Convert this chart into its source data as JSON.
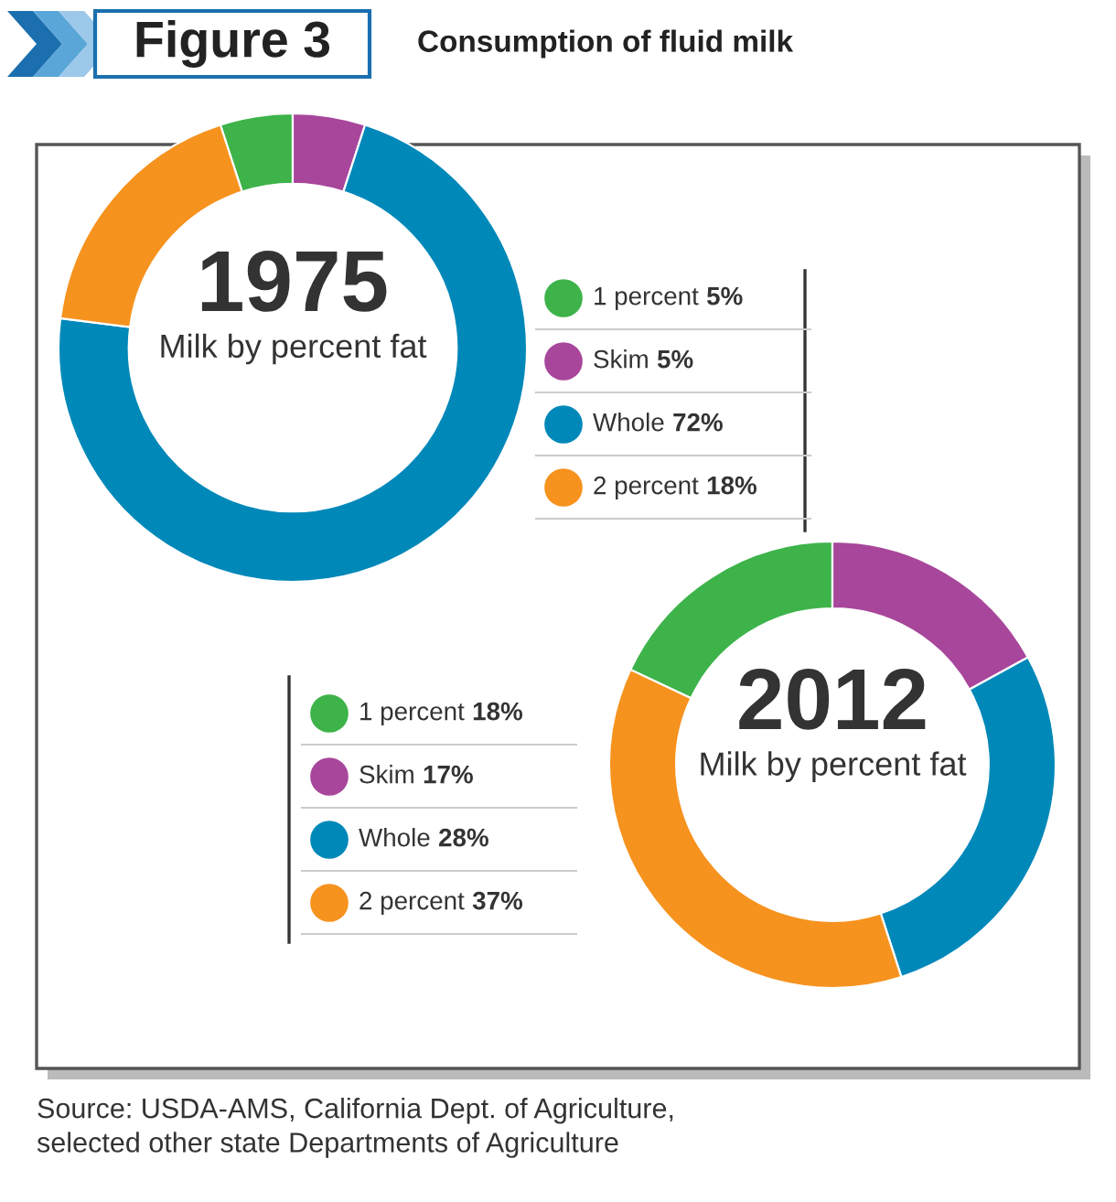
{
  "chart_data": [
    {
      "type": "donut",
      "title": "1975",
      "subtitle": "Milk by percent fat",
      "annotations": [
        "Figure 3",
        "Consumption of fluid milk"
      ],
      "categories": [
        "1 percent",
        "Skim",
        "Whole",
        "2 percent"
      ],
      "values": [
        5,
        5,
        72,
        18
      ],
      "value_labels": [
        "5%",
        "5%",
        "72%",
        "18%"
      ],
      "colors": [
        "#3db34a",
        "#a8469b",
        "#0088b9",
        "#f6921e"
      ],
      "legend": "right"
    },
    {
      "type": "donut",
      "title": "2012",
      "subtitle": "Milk by percent fat",
      "annotations": [
        "Source: USDA-AMS, California Dept. of Agriculture,\nselected other state Departments of Agriculture"
      ],
      "categories": [
        "1 percent",
        "Skim",
        "Whole",
        "2 percent"
      ],
      "values": [
        18,
        17,
        28,
        37
      ],
      "value_labels": [
        "18%",
        "17%",
        "28%",
        "37%"
      ],
      "colors": [
        "#3db34a",
        "#a8469b",
        "#0088b9",
        "#f6921e"
      ],
      "legend": "left"
    }
  ]
}
